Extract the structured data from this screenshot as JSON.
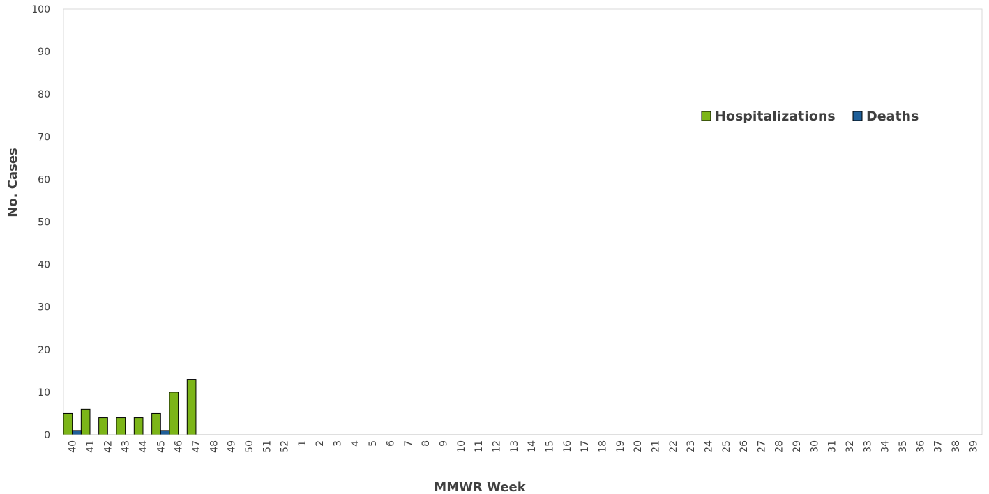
{
  "chart_data": {
    "type": "bar",
    "title": "",
    "xlabel": "MMWR Week",
    "ylabel": "No. Cases",
    "ylim": [
      0,
      100
    ],
    "yticks": [
      0,
      10,
      20,
      30,
      40,
      50,
      60,
      70,
      80,
      90,
      100
    ],
    "grid": false,
    "legend_position": "top-right",
    "categories": [
      "40",
      "41",
      "42",
      "43",
      "44",
      "45",
      "46",
      "47",
      "48",
      "49",
      "50",
      "51",
      "52",
      "1",
      "2",
      "3",
      "4",
      "5",
      "6",
      "7",
      "8",
      "9",
      "10",
      "11",
      "12",
      "13",
      "14",
      "15",
      "16",
      "17",
      "18",
      "19",
      "20",
      "21",
      "22",
      "23",
      "24",
      "25",
      "26",
      "27",
      "28",
      "29",
      "30",
      "31",
      "32",
      "33",
      "34",
      "35",
      "36",
      "37",
      "38",
      "39"
    ],
    "series": [
      {
        "name": "Hospitalizations",
        "color": "#7cb518",
        "values": [
          5,
          6,
          4,
          4,
          4,
          5,
          10,
          13,
          0,
          0,
          0,
          0,
          0,
          0,
          0,
          0,
          0,
          0,
          0,
          0,
          0,
          0,
          0,
          0,
          0,
          0,
          0,
          0,
          0,
          0,
          0,
          0,
          0,
          0,
          0,
          0,
          0,
          0,
          0,
          0,
          0,
          0,
          0,
          0,
          0,
          0,
          0,
          0,
          0,
          0,
          0,
          0
        ]
      },
      {
        "name": "Deaths",
        "color": "#1f5f99",
        "values": [
          1,
          0,
          0,
          0,
          0,
          1,
          0,
          0,
          0,
          0,
          0,
          0,
          0,
          0,
          0,
          0,
          0,
          0,
          0,
          0,
          0,
          0,
          0,
          0,
          0,
          0,
          0,
          0,
          0,
          0,
          0,
          0,
          0,
          0,
          0,
          0,
          0,
          0,
          0,
          0,
          0,
          0,
          0,
          0,
          0,
          0,
          0,
          0,
          0,
          0,
          0,
          0
        ]
      }
    ]
  }
}
